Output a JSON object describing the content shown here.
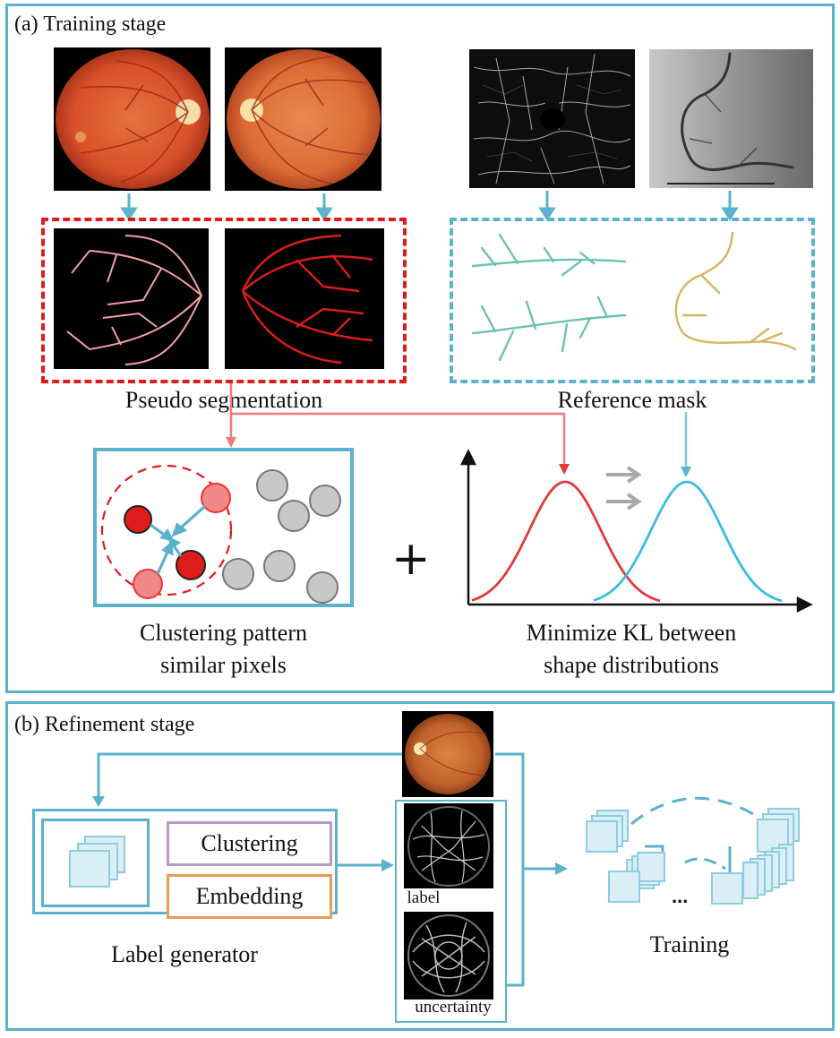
{
  "training": {
    "title": "(a) Training stage",
    "pseudo_caption": "Pseudo segmentation",
    "reference_caption": "Reference mask",
    "cluster_caption_line1": "Clustering pattern",
    "cluster_caption_line2": "similar pixels",
    "kl_caption_line1": "Minimize KL between",
    "kl_caption_line2": "shape distributions",
    "plus": "+"
  },
  "refinement": {
    "title": "(b) Refinement stage",
    "clustering_label": "Clustering",
    "embedding_label": "Embedding",
    "generator_caption": "Label generator",
    "label_text": "label",
    "uncertainty_text": "uncertainty",
    "training_caption": "Training",
    "ellipsis": "..."
  },
  "colors": {
    "accent_blue": "#5ab2cc",
    "pseudo_red": "#e01b1b",
    "reference_teal": "#6cc3b0",
    "reference_gold": "#d4b560",
    "clustering_border": "#b49bc8",
    "embedding_border": "#ec9b55",
    "curve_red": "#e23a3a",
    "curve_blue": "#3bbce3"
  }
}
